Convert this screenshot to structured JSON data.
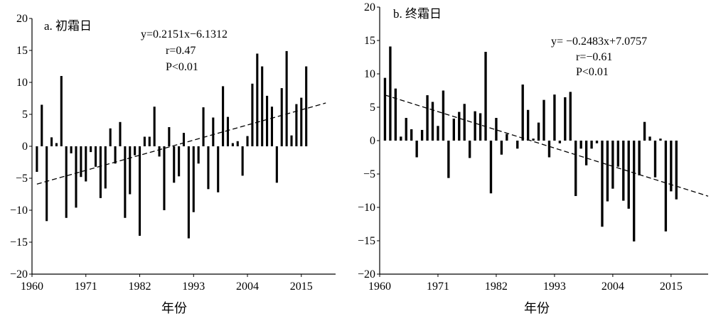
{
  "chart_data": [
    {
      "type": "bar",
      "title": "a. 初霜日",
      "xlabel": "年份",
      "ylabel": "",
      "ylim": [
        -20,
        20
      ],
      "yticks": [
        -20,
        -15,
        -10,
        -5,
        0,
        5,
        10,
        15,
        20
      ],
      "xticks": [
        1960,
        1971,
        1982,
        1993,
        2004,
        2015
      ],
      "x": [
        1961,
        1962,
        1963,
        1964,
        1965,
        1966,
        1967,
        1968,
        1969,
        1970,
        1971,
        1972,
        1973,
        1974,
        1975,
        1976,
        1977,
        1978,
        1979,
        1980,
        1981,
        1982,
        1983,
        1984,
        1985,
        1986,
        1987,
        1988,
        1989,
        1990,
        1991,
        1992,
        1993,
        1994,
        1995,
        1996,
        1997,
        1998,
        1999,
        2000,
        2001,
        2002,
        2003,
        2004,
        2005,
        2006,
        2007,
        2008,
        2009,
        2010,
        2011,
        2012,
        2013,
        2014,
        2015,
        2016,
        2017,
        2018,
        2019,
        2020
      ],
      "values": [
        -4,
        6.5,
        -11.7,
        1.4,
        0.5,
        11,
        -11.2,
        -1.1,
        -9.6,
        -4.8,
        -5.5,
        -0.9,
        -3.2,
        -8.1,
        -6.6,
        2.8,
        -2.7,
        3.8,
        -11.2,
        -7.5,
        -1.4,
        -14,
        1.5,
        1.5,
        6.2,
        -1.6,
        -10,
        3,
        -5.7,
        -4.7,
        2.1,
        -14.4,
        -10.3,
        -2.7,
        6.1,
        -6.7,
        4.5,
        -7.2,
        9.4,
        4.6,
        0.5,
        0.8,
        -4.6,
        1.6,
        9.8,
        14.5,
        12.5,
        7.9,
        6.2,
        -5.7,
        9.1,
        14.9,
        1.7,
        6.6,
        7.6,
        12.5,
        0,
        0,
        0,
        0
      ],
      "annotation": {
        "equation": "y=0.2151x−6.1312",
        "r": "r=0.47",
        "p": "P<0.01"
      },
      "trend": {
        "slope": 0.2151,
        "intercept": -6.1312
      }
    },
    {
      "type": "bar",
      "title": "b. 终霜日",
      "xlabel": "年份",
      "ylabel": "",
      "ylim": [
        -20,
        20
      ],
      "yticks": [
        -20,
        -15,
        -10,
        -5,
        0,
        5,
        10,
        15,
        20
      ],
      "xticks": [
        1960,
        1971,
        1982,
        1993,
        2004,
        2015
      ],
      "x": [
        1961,
        1962,
        1963,
        1964,
        1965,
        1966,
        1967,
        1968,
        1969,
        1970,
        1971,
        1972,
        1973,
        1974,
        1975,
        1976,
        1977,
        1978,
        1979,
        1980,
        1981,
        1982,
        1983,
        1984,
        1985,
        1986,
        1987,
        1988,
        1989,
        1990,
        1991,
        1992,
        1993,
        1994,
        1995,
        1996,
        1997,
        1998,
        1999,
        2000,
        2001,
        2002,
        2003,
        2004,
        2005,
        2006,
        2007,
        2008,
        2009,
        2010,
        2011,
        2012,
        2013,
        2014,
        2015,
        2016,
        2017,
        2018,
        2019,
        2020,
        2021,
        2022
      ],
      "values": [
        9.4,
        14.1,
        7.8,
        0.6,
        3.4,
        1.7,
        -2.5,
        1.6,
        6.8,
        5.8,
        2.2,
        7.5,
        -5.6,
        3.3,
        4.3,
        5.5,
        -2.6,
        4.4,
        4.1,
        13.3,
        -7.9,
        3.4,
        -2.1,
        1,
        0,
        -1.2,
        8.4,
        4.6,
        0.3,
        2.7,
        6.1,
        -2.5,
        6.9,
        -0.4,
        6.5,
        7.3,
        -8.3,
        -1.2,
        -3.7,
        -1.2,
        -0.4,
        -12.9,
        -9.1,
        -7.2,
        -3.9,
        -9,
        -10.2,
        -15.1,
        -5.2,
        2.8,
        0.6,
        -5.5,
        0.3,
        -13.6,
        -7.6,
        -8.8,
        0,
        0,
        0,
        0,
        0,
        0
      ],
      "annotation": {
        "equation": "y= −0.2483x+7.0757",
        "r": "r=−0.61",
        "p": "P<0.01"
      },
      "trend": {
        "slope": -0.2483,
        "intercept": 7.0757
      }
    }
  ]
}
